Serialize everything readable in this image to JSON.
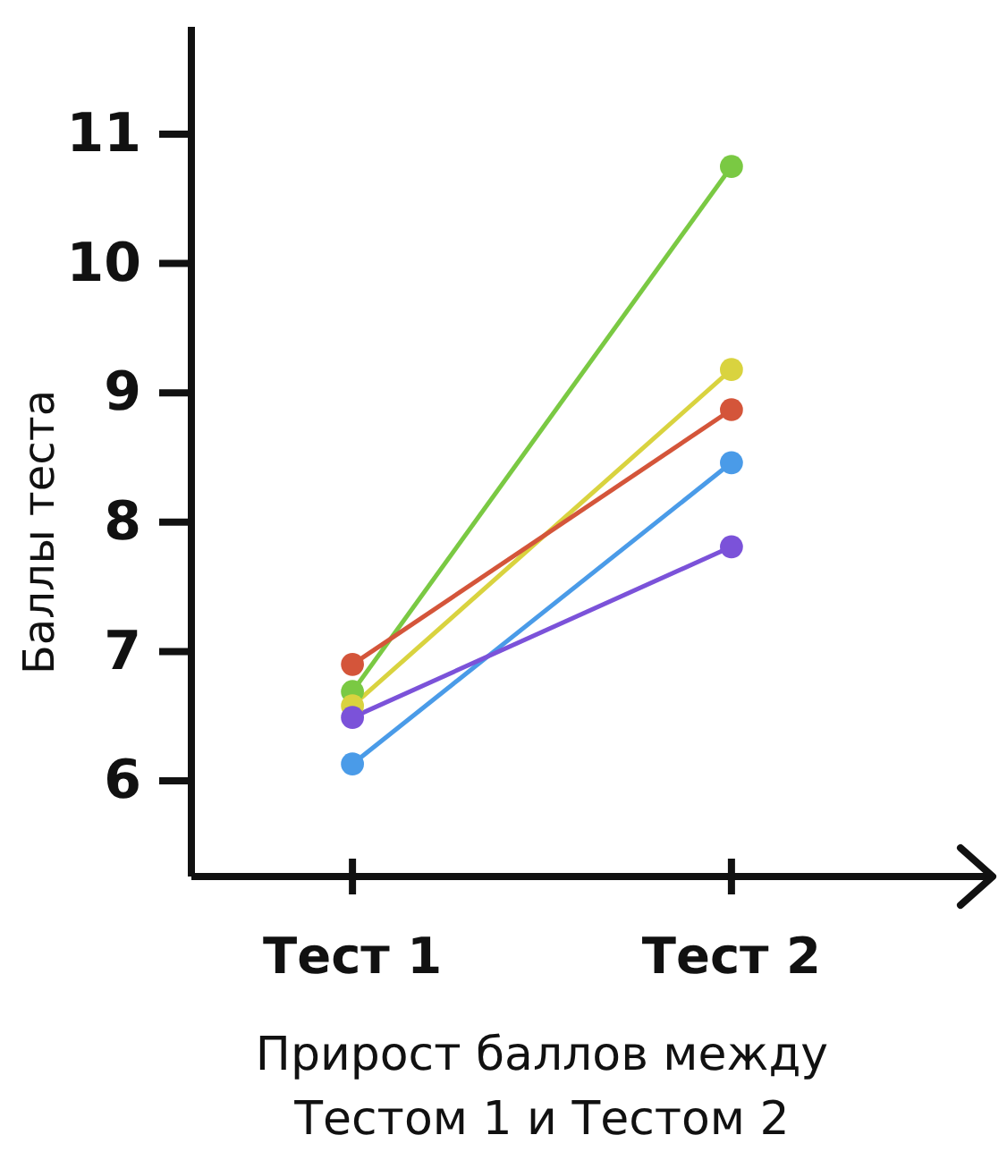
{
  "chart_data": {
    "type": "line",
    "xlabel": "Прирост баллов между Тестом 1 и Тестом 2",
    "ylabel": "Баллы теста",
    "categories": [
      "Тест 1",
      "Тест 2"
    ],
    "ylim": [
      5.26,
      11.83
    ],
    "yticks": [
      6,
      7,
      8,
      9,
      10,
      11
    ],
    "marker": "circle",
    "grid": false,
    "series": [
      {
        "color": "#7ac943",
        "values": [
          6.69,
          10.75
        ]
      },
      {
        "color": "#d9d33f",
        "values": [
          6.58,
          9.18
        ]
      },
      {
        "color": "#d4553a",
        "values": [
          6.9,
          8.87
        ]
      },
      {
        "color": "#4a9be8",
        "values": [
          6.13,
          8.46
        ]
      },
      {
        "color": "#7b52d9",
        "values": [
          6.49,
          7.81
        ]
      }
    ]
  }
}
